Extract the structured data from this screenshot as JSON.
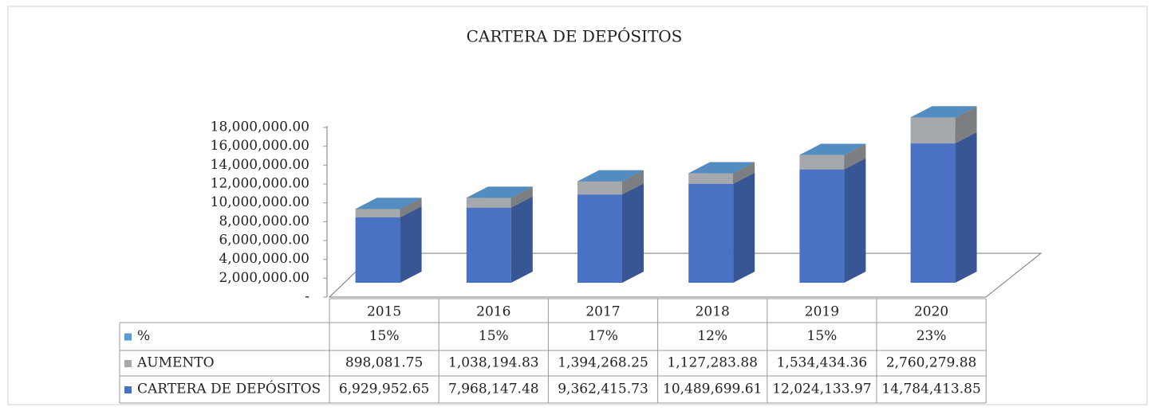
{
  "chart_data": {
    "type": "bar",
    "stacked": true,
    "title": "CARTERA DE DEPÓSITOS",
    "categories": [
      "2015",
      "2016",
      "2017",
      "2018",
      "2019",
      "2020"
    ],
    "series": [
      {
        "name": "%",
        "color": "#5b9bd5",
        "values": [
          15,
          15,
          17,
          12,
          15,
          23
        ],
        "value_labels": [
          "15%",
          "15%",
          "17%",
          "12%",
          "15%",
          "23%"
        ]
      },
      {
        "name": "AUMENTO",
        "color": "#a5a9ad",
        "values": [
          898081.75,
          1038194.83,
          1394268.25,
          1127283.88,
          1534434.36,
          2760279.88
        ],
        "value_labels": [
          "898,081.75",
          "1,038,194.83",
          "1,394,268.25",
          "1,127,283.88",
          "1,534,434.36",
          "2,760,279.88"
        ]
      },
      {
        "name": "CARTERA DE DEPÓSITOS",
        "color": "#4a72c4",
        "values": [
          6929952.65,
          7968147.48,
          9362415.73,
          10489699.61,
          12024133.97,
          14784413.85
        ],
        "value_labels": [
          "6,929,952.65",
          "7,968,147.48",
          "9,362,415.73",
          "10,489,699.61",
          "12,024,133.97",
          "14,784,413.85"
        ]
      }
    ],
    "ylim": [
      0,
      18000000
    ],
    "yticks": [
      {
        "value": 0,
        "label": "-"
      },
      {
        "value": 2000000,
        "label": "2,000,000.00"
      },
      {
        "value": 4000000,
        "label": "4,000,000.00"
      },
      {
        "value": 6000000,
        "label": "6,000,000.00"
      },
      {
        "value": 8000000,
        "label": "8,000,000.00"
      },
      {
        "value": 10000000,
        "label": "10,000,000.00"
      },
      {
        "value": 12000000,
        "label": "12,000,000.00"
      },
      {
        "value": 14000000,
        "label": "14,000,000.00"
      },
      {
        "value": 16000000,
        "label": "16,000,000.00"
      },
      {
        "value": 18000000,
        "label": "18,000,000.00"
      }
    ]
  }
}
